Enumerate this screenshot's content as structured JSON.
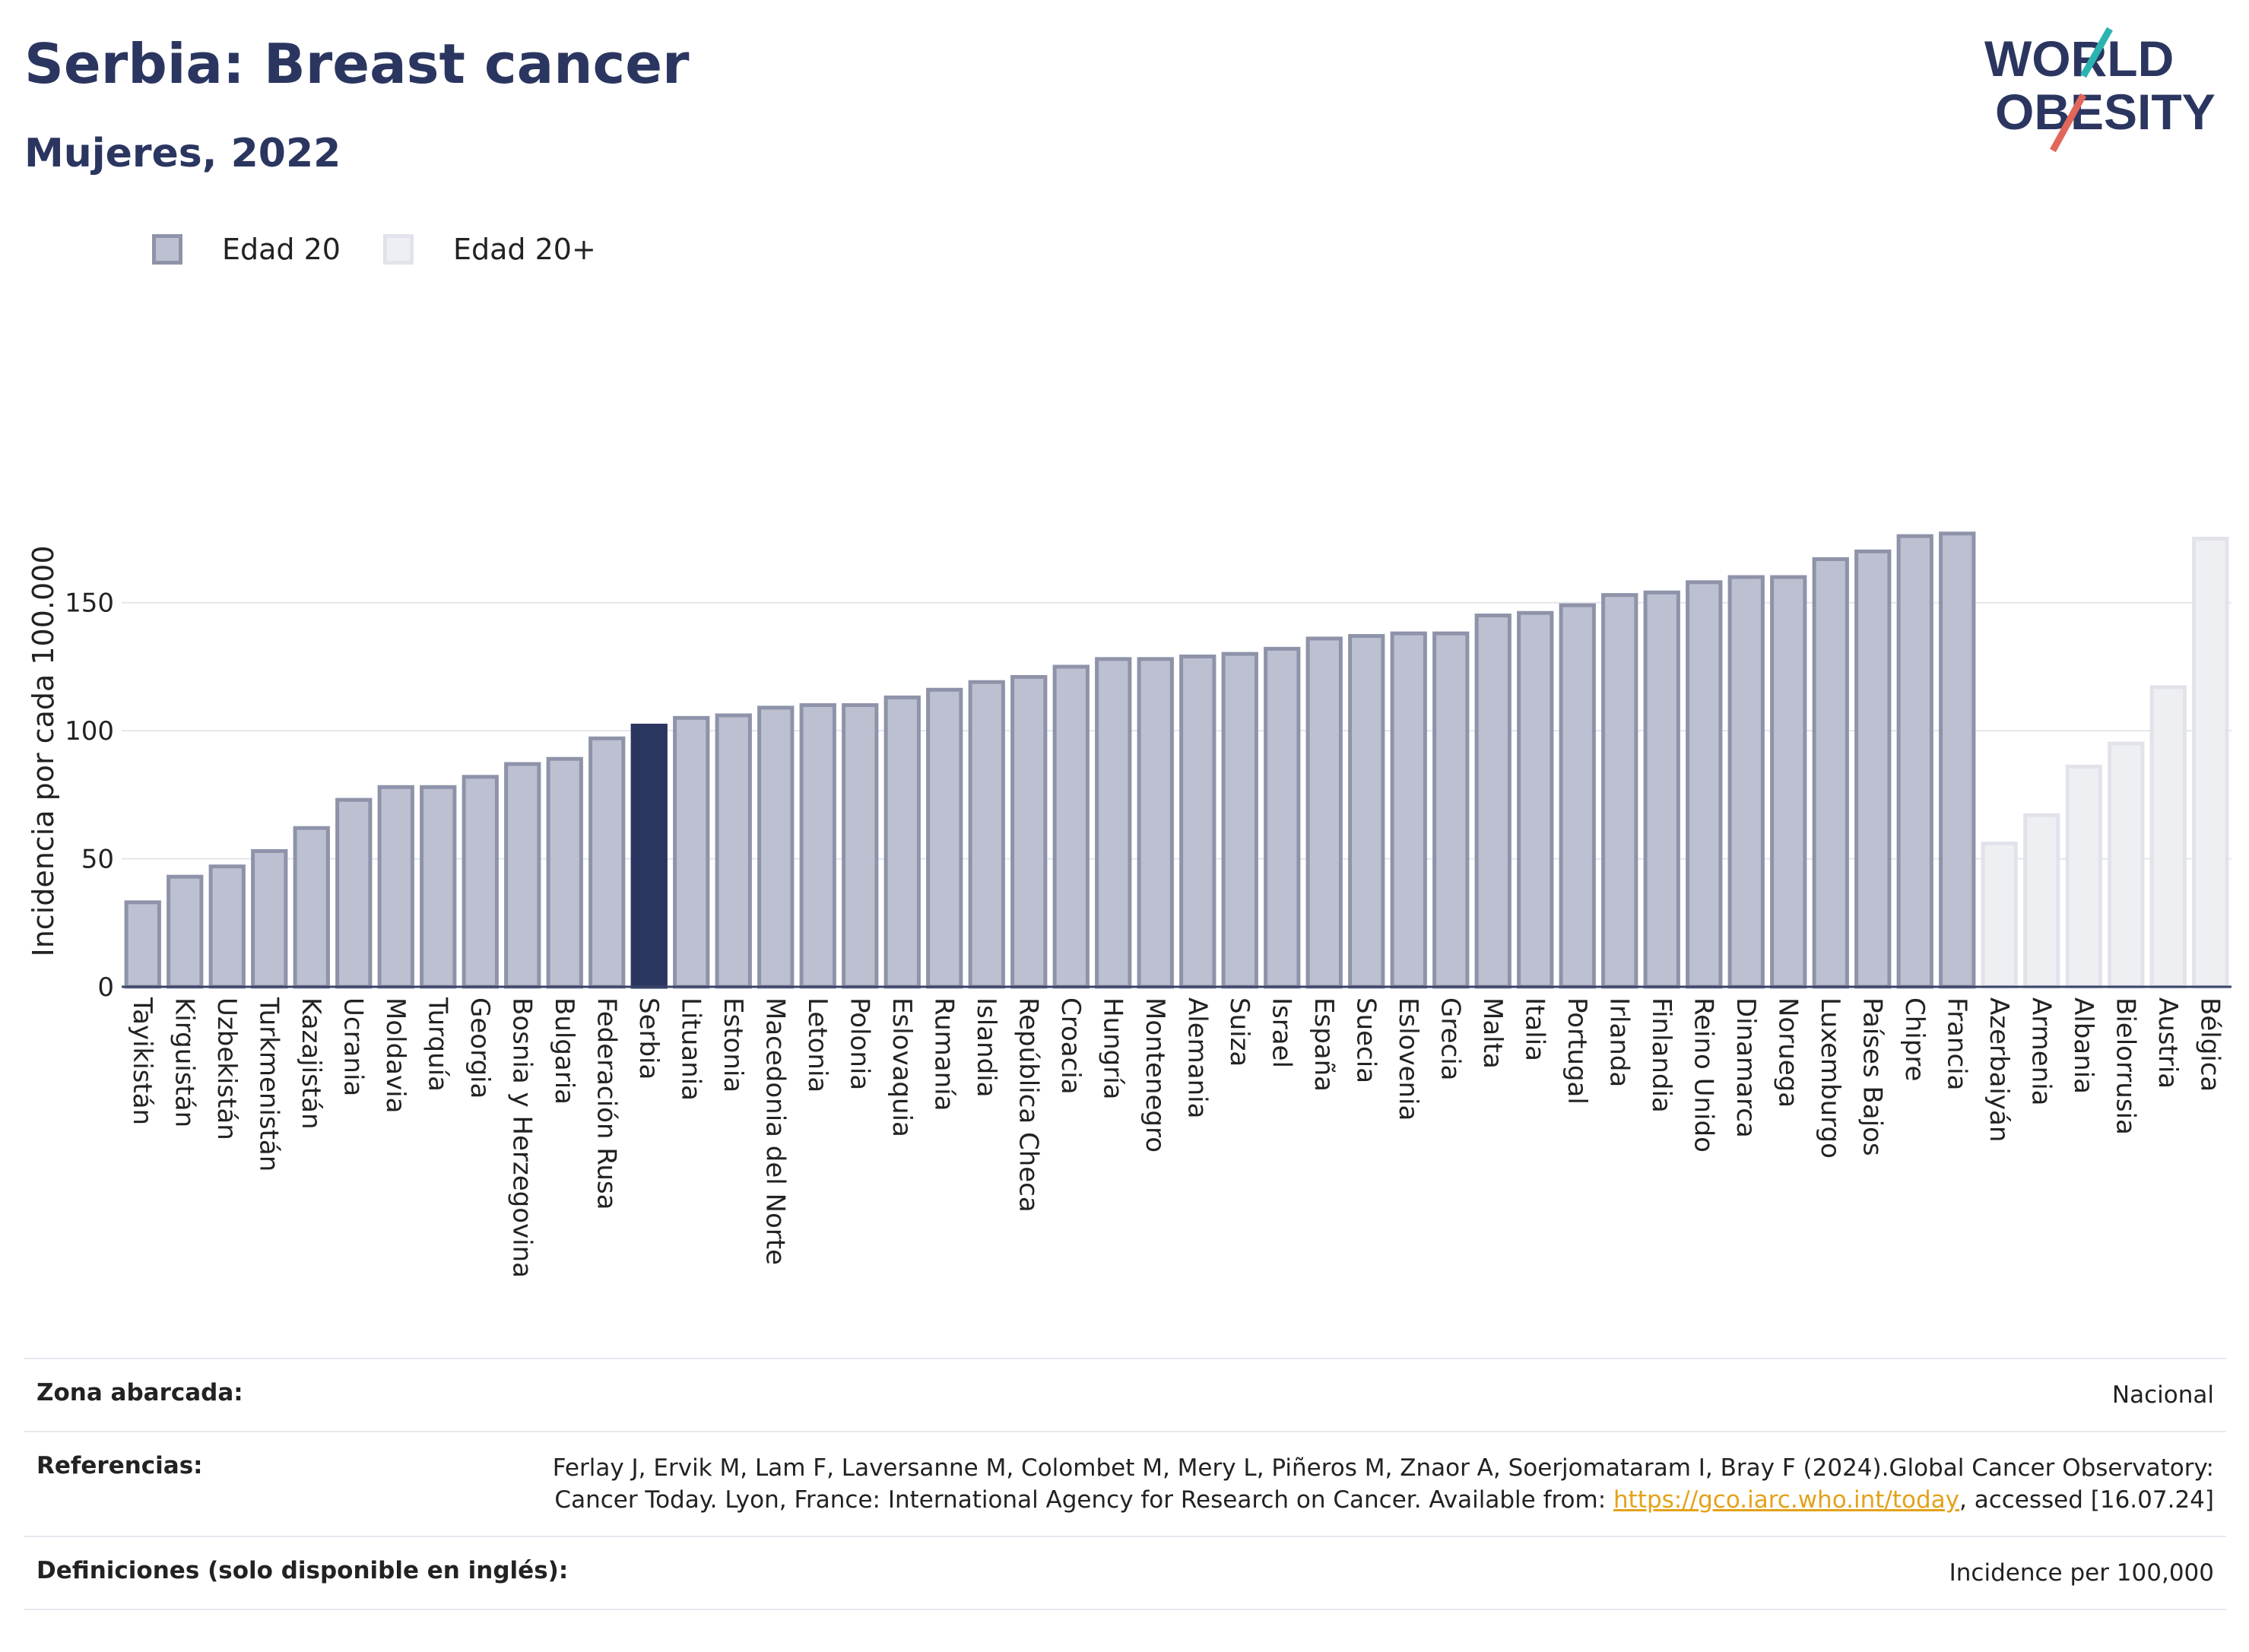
{
  "title": "Serbia: Breast cancer",
  "subtitle": "Mujeres, 2022",
  "logo": {
    "line1": "WORLD",
    "line2": "OBESITY"
  },
  "legend": [
    {
      "label": "Edad 20",
      "color": "#bcc0d0"
    },
    {
      "label": "Edad 20+",
      "color": "#eeeff3"
    }
  ],
  "colors": {
    "bar": "#bcc0d0",
    "bar_border": "#8e93aa",
    "highlight": "#2b3660",
    "light": "#eeeff3",
    "light_border": "#e2e3ea",
    "accent_link": "#e3a21a"
  },
  "chart_data": {
    "type": "bar",
    "ylabel": "Incidencia por cada 100.000",
    "ylim": [
      0,
      190
    ],
    "yticks": [
      0,
      50,
      100,
      150
    ],
    "grid": true,
    "legend_position": "top-left",
    "categories": [
      "Tayikistán",
      "Kirguistán",
      "Uzbekistán",
      "Turkmenistán",
      "Kazajistán",
      "Ucrania",
      "Moldavia",
      "Turquía",
      "Georgia",
      "Bosnia y Herzegovina",
      "Bulgaria",
      "Federación Rusa",
      "Serbia",
      "Lituania",
      "Estonia",
      "Macedonia del Norte",
      "Letonia",
      "Polonia",
      "Eslovaquia",
      "Rumanía",
      "Islandia",
      "República Checa",
      "Croacia",
      "Hungría",
      "Montenegro",
      "Alemania",
      "Suiza",
      "Israel",
      "España",
      "Suecia",
      "Eslovenia",
      "Grecia",
      "Malta",
      "Italia",
      "Portugal",
      "Irlanda",
      "Finlandia",
      "Reino Unido",
      "Dinamarca",
      "Noruega",
      "Luxemburgo",
      "Países Bajos",
      "Chipre",
      "Francia",
      "Azerbaiyán",
      "Armenia",
      "Albania",
      "Bielorrusia",
      "Austria",
      "Bélgica"
    ],
    "values": [
      33,
      43,
      47,
      53,
      62,
      73,
      78,
      78,
      82,
      87,
      89,
      97,
      102,
      105,
      106,
      109,
      110,
      110,
      113,
      116,
      119,
      121,
      125,
      128,
      128,
      129,
      130,
      132,
      136,
      137,
      138,
      138,
      145,
      146,
      149,
      153,
      154,
      158,
      160,
      160,
      167,
      170,
      176,
      177,
      56,
      67,
      86,
      95,
      117,
      175
    ],
    "groups": [
      "Edad 20",
      "Edad 20",
      "Edad 20",
      "Edad 20",
      "Edad 20",
      "Edad 20",
      "Edad 20",
      "Edad 20",
      "Edad 20",
      "Edad 20",
      "Edad 20",
      "Edad 20",
      "Edad 20",
      "Edad 20",
      "Edad 20",
      "Edad 20",
      "Edad 20",
      "Edad 20",
      "Edad 20",
      "Edad 20",
      "Edad 20",
      "Edad 20",
      "Edad 20",
      "Edad 20",
      "Edad 20",
      "Edad 20",
      "Edad 20",
      "Edad 20",
      "Edad 20",
      "Edad 20",
      "Edad 20",
      "Edad 20",
      "Edad 20",
      "Edad 20",
      "Edad 20",
      "Edad 20",
      "Edad 20",
      "Edad 20",
      "Edad 20",
      "Edad 20",
      "Edad 20",
      "Edad 20",
      "Edad 20",
      "Edad 20",
      "Edad 20+",
      "Edad 20+",
      "Edad 20+",
      "Edad 20+",
      "Edad 20+",
      "Edad 20+"
    ],
    "highlight": "Serbia"
  },
  "info_table": [
    {
      "key": "Zona abarcada:",
      "value": "Nacional"
    },
    {
      "key": "Referencias:",
      "value_pre": "Ferlay J, Ervik M, Lam F, Laversanne M, Colombet M, Mery L, Piñeros M, Znaor A, Soerjomataram I, Bray F (2024).Global Cancer Observatory: Cancer Today. Lyon, France: International Agency for Research on Cancer. Available from: ",
      "link": "https://gco.iarc.who.int/today",
      "value_post": ", accessed [16.07.24]"
    },
    {
      "key": "Definiciones (solo disponible en inglés):",
      "value": "Incidence per 100,000"
    }
  ]
}
